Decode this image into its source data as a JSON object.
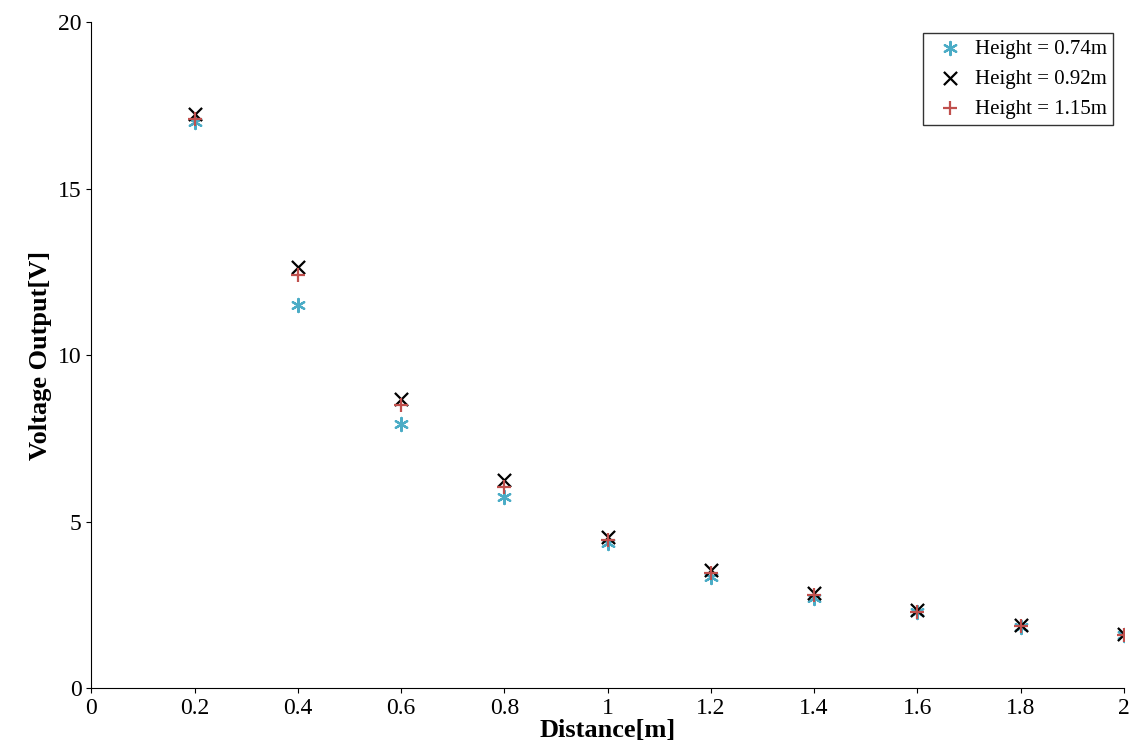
{
  "chart_data": {
    "type": "scatter",
    "x_label": "Distance[m]",
    "y_label": "Voltage Output[V]",
    "xlim": [
      0,
      2
    ],
    "xticks": [
      0,
      0.2,
      0.4,
      0.6,
      0.8,
      1,
      1.2,
      1.4,
      1.6,
      1.8,
      2
    ],
    "ylim": [
      0,
      20
    ],
    "yticks": [
      0,
      5,
      10,
      15,
      20
    ],
    "grid": false,
    "legend": "upper right",
    "x": [
      0.2,
      0.4,
      0.6,
      0.8,
      1.0,
      1.2,
      1.4,
      1.6,
      1.8,
      2.0
    ],
    "series": [
      {
        "name": "Height = 0.74m",
        "color": "#4bacc6",
        "marker": "asterisk",
        "values": [
          17.0,
          11.5,
          7.95,
          5.75,
          4.35,
          3.35,
          2.7,
          2.3,
          1.85,
          1.6
        ]
      },
      {
        "name": "Height = 0.92m",
        "color": "#000000",
        "marker": "x",
        "values": [
          17.25,
          12.65,
          8.7,
          6.25,
          4.55,
          3.55,
          2.85,
          2.35,
          1.9,
          1.62
        ]
      },
      {
        "name": "Height = 1.15m",
        "color": "#c0504d",
        "marker": "plus",
        "values": [
          17.1,
          12.4,
          8.5,
          6.05,
          4.45,
          3.45,
          2.8,
          2.3,
          1.88,
          1.6
        ]
      }
    ]
  }
}
